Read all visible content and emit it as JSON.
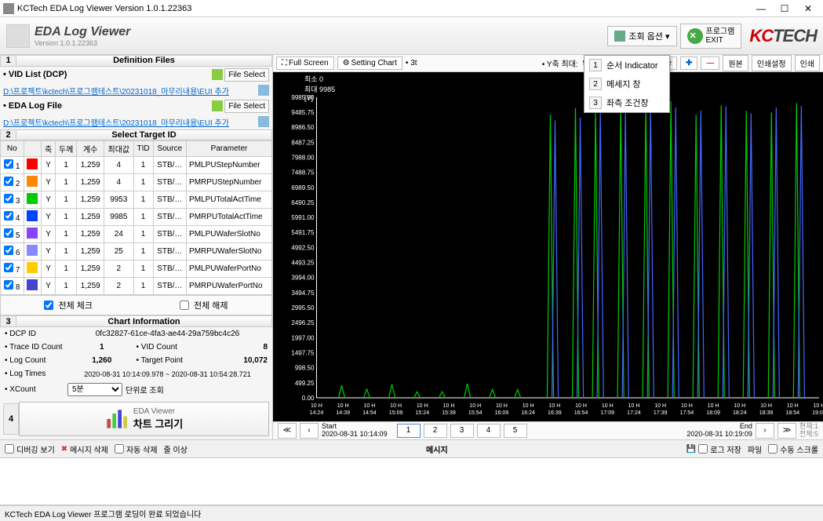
{
  "titlebar": {
    "text": "KCTech EDA Log Viewer Version 1.0.1.22363"
  },
  "header": {
    "title": "EDA Log Viewer",
    "version": "Version 1.0.1.22363",
    "opt_btn": "조회 옵션 ▾",
    "exit_btn": "프로그램\nEXIT"
  },
  "sections": {
    "s1": "Definition Files",
    "s2": "Select Target ID",
    "s3": "Chart Information"
  },
  "files": {
    "vid_label": "• VID List (DCP)",
    "vid_link": "D:\\프로젝트\\kctech\\프로그램테스트\\20231018_마무리내용\\EUI 추가",
    "eda_label": "• EDA Log File",
    "eda_link": "D:\\프로젝트\\kctech\\프로그램테스트\\20231018_마무리내용\\EUI 추가",
    "file_select": "File Select"
  },
  "table": {
    "cols": [
      "No",
      "",
      "축",
      "두께",
      "계수",
      "최대값",
      "TID",
      "Source",
      "Parameter"
    ],
    "rows": [
      {
        "no": 1,
        "color": "#ff0000",
        "axis": "Y",
        "th": 1,
        "cnt": "1,259",
        "max": 4,
        "tid": 1,
        "src": "STB/…",
        "param": "PMLPUStepNumber"
      },
      {
        "no": 2,
        "color": "#ff8800",
        "axis": "Y",
        "th": 1,
        "cnt": "1,259",
        "max": 4,
        "tid": 1,
        "src": "STB/…",
        "param": "PMRPUStepNumber"
      },
      {
        "no": 3,
        "color": "#00cc00",
        "axis": "Y",
        "th": 1,
        "cnt": "1,259",
        "max": 9953,
        "tid": 1,
        "src": "STB/…",
        "param": "PMLPUTotalActTime"
      },
      {
        "no": 4,
        "color": "#0044ff",
        "axis": "Y",
        "th": 1,
        "cnt": "1,259",
        "max": 9985,
        "tid": 1,
        "src": "STB/…",
        "param": "PMRPUTotalActTime"
      },
      {
        "no": 5,
        "color": "#8844ff",
        "axis": "Y",
        "th": 1,
        "cnt": "1,259",
        "max": 24,
        "tid": 1,
        "src": "STB/…",
        "param": "PMLPUWaferSlotNo"
      },
      {
        "no": 6,
        "color": "#8888ff",
        "axis": "Y",
        "th": 1,
        "cnt": "1,259",
        "max": 25,
        "tid": 1,
        "src": "STB/…",
        "param": "PMRPUWaferSlotNo"
      },
      {
        "no": 7,
        "color": "#ffcc00",
        "axis": "Y",
        "th": 1,
        "cnt": "1,259",
        "max": 2,
        "tid": 1,
        "src": "STB/…",
        "param": "PMLPUWaferPortNo"
      },
      {
        "no": 8,
        "color": "#4444cc",
        "axis": "Y",
        "th": 1,
        "cnt": "1,259",
        "max": 2,
        "tid": 1,
        "src": "STB/…",
        "param": "PMRPUWaferPortNo"
      }
    ]
  },
  "check": {
    "all": "전체 체크",
    "none": "전체 해제"
  },
  "info": {
    "dcp_lbl": "• DCP ID",
    "dcp_val": "0fc32827-61ce-4fa3-ae44-29a759bc4c26",
    "trace_lbl": "• Trace ID Count",
    "trace_val": "1",
    "vid_lbl": "• VID Count",
    "vid_val": "8",
    "log_lbl": "• Log Count",
    "log_val": "1,260",
    "target_lbl": "• Target Point",
    "target_val": "10,072",
    "times_lbl": "• Log Times",
    "times_val": "2020-08-31 10:14:09.978 ~ 2020-08-31 10:54:28.721",
    "xcount_lbl": "• XCount",
    "xcount_sel": "5분",
    "xcount_unit": "단위로 조회"
  },
  "draw": {
    "title": "EDA Viewer",
    "btn": "차트 그리기"
  },
  "chart_toolbar": {
    "fullscreen": "Full Screen",
    "setting": "Setting Chart",
    "three": "• 3t",
    "ymax_lbl": "• Y축 최대:",
    "ymax_val": "9985",
    "capture": "Capture",
    "orig": "원본",
    "print_set": "인쇄설정",
    "print": "인쇄"
  },
  "chart": {
    "top_info": "최소 0\n최대 9985\n[Y]",
    "y_ticks": [
      "9985.00",
      "9485.75",
      "8986.50",
      "8487.25",
      "7988.00",
      "7488.75",
      "6989.50",
      "6490.25",
      "5991.00",
      "5491.75",
      "4992.50",
      "4493.25",
      "3994.00",
      "3494.75",
      "2995.50",
      "2496.25",
      "1997.00",
      "1497.75",
      "998.50",
      "499.25",
      "0.00"
    ],
    "x_ticks": [
      "10 H\n14:24",
      "10 H\n14:39",
      "10 H\n14:54",
      "10 H\n15:09",
      "10 H\n15:24",
      "10 H\n15:39",
      "10 H\n15:54",
      "10 H\n16:09",
      "10 H\n16:24",
      "10 H\n16:39",
      "10 H\n16:54",
      "10 H\n17:09",
      "10 H\n17:24",
      "10 H\n17:39",
      "10 H\n17:54",
      "10 H\n18:09",
      "10 H\n18:24",
      "10 H\n18:39",
      "10 H\n18:54",
      "10 H\n19:09"
    ],
    "series_colors": {
      "green": "#00cc00",
      "blue": "#4466ff"
    }
  },
  "pager": {
    "start_lbl": "Start",
    "start_val": "2020-08-31 10:14:09",
    "end_lbl": "End",
    "end_val": "2020-08-31 10:19:09",
    "cur_lbl": "현재:",
    "cur_val": "1",
    "total_lbl": "전체:5",
    "pages": [
      "1",
      "2",
      "3",
      "4",
      "5"
    ]
  },
  "bottom": {
    "debug": "디버깅 보기",
    "del_msg": "메시지 삭제",
    "auto_del": "자동 삭제",
    "thresh": "줄 이상",
    "msg_title": "메시지",
    "save_log": "로그 저장",
    "file": "파일",
    "vscroll": "수동 스크롤"
  },
  "status": {
    "text": "KCTech EDA Log Viewer 프로그램 로딩이 완료 되었습니다"
  },
  "dropdown": [
    {
      "n": "1",
      "t": "순서 Indicator"
    },
    {
      "n": "2",
      "t": "메세지 창"
    },
    {
      "n": "3",
      "t": "좌측 조건창"
    }
  ]
}
